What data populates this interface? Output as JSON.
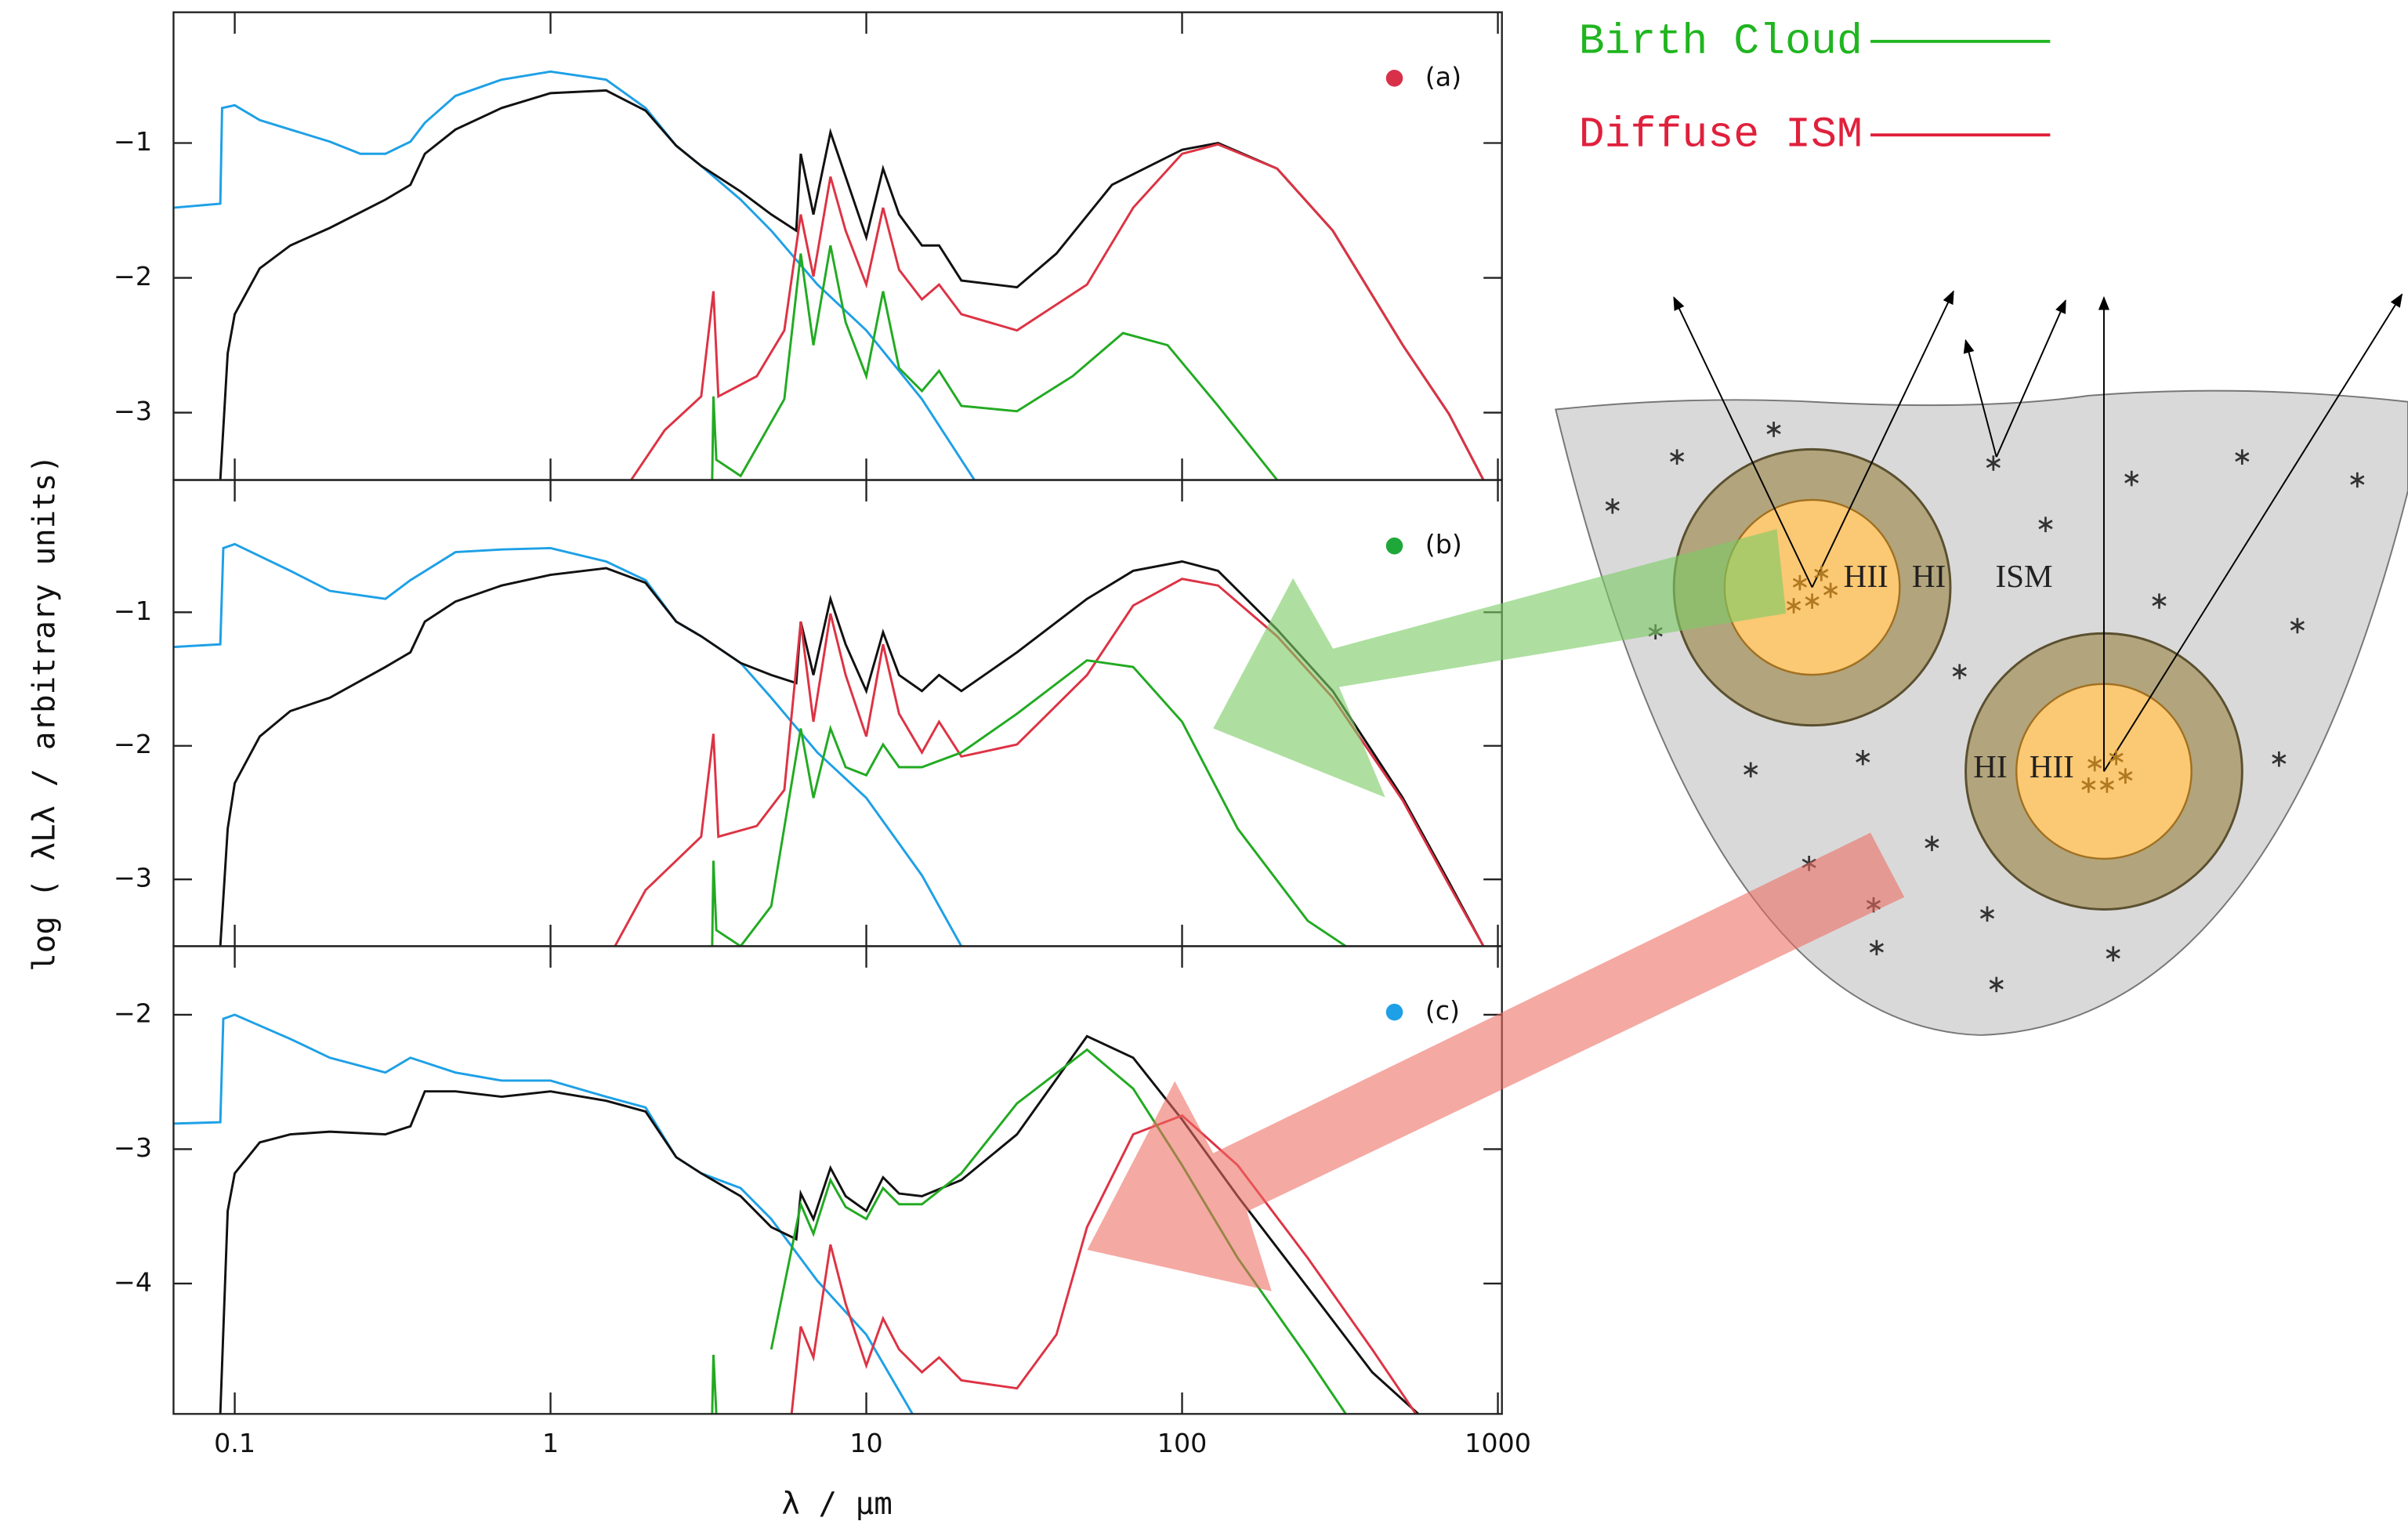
{
  "chart_data": [
    {
      "type": "line",
      "panel_label": "(a)",
      "marker_color": "#d9304a",
      "xlim": [
        0.064,
        1030
      ],
      "xticks": [
        0.1,
        1,
        10,
        100,
        1000
      ],
      "log_x": true,
      "show_xtick_labels": false,
      "ylim": [
        -3.5,
        -0.03
      ],
      "yticks": [
        {
          "value": -1,
          "label": "−1"
        },
        {
          "value": -2,
          "label": "−2"
        },
        {
          "value": -3,
          "label": "−3"
        }
      ],
      "series": [
        {
          "color": "#1ea0e6",
          "x": [
            0.064,
            0.09,
            0.0912,
            0.1,
            0.12,
            0.15,
            0.2,
            0.25,
            0.3,
            0.36,
            0.4,
            0.5,
            0.7,
            1,
            1.5,
            2,
            2.5,
            3,
            4,
            5,
            7,
            10,
            15,
            22
          ],
          "values": [
            -1.48,
            -1.45,
            -0.74,
            -0.72,
            -0.83,
            -0.9,
            -0.99,
            -1.08,
            -1.08,
            -0.99,
            -0.85,
            -0.65,
            -0.53,
            -0.47,
            -0.53,
            -0.74,
            -1.02,
            -1.17,
            -1.42,
            -1.65,
            -2.05,
            -2.39,
            -2.9,
            -3.5
          ]
        },
        {
          "color": "#111111",
          "x": [
            0.09,
            0.095,
            0.1,
            0.12,
            0.15,
            0.2,
            0.3,
            0.36,
            0.4,
            0.5,
            0.7,
            1,
            1.5,
            2,
            2.5,
            3,
            4,
            5,
            6,
            6.2,
            6.8,
            7.7,
            8.6,
            10,
            11.3,
            12.7,
            15,
            17,
            20,
            30,
            40,
            60,
            100,
            130,
            200,
            300,
            500,
            700,
            900
          ],
          "values": [
            -3.5,
            -2.56,
            -2.27,
            -1.93,
            -1.76,
            -1.63,
            -1.42,
            -1.31,
            -1.08,
            -0.9,
            -0.74,
            -0.63,
            -0.61,
            -0.76,
            -1.02,
            -1.17,
            -1.36,
            -1.53,
            -1.65,
            -1.08,
            -1.53,
            -0.92,
            -1.25,
            -1.7,
            -1.19,
            -1.53,
            -1.76,
            -1.76,
            -2.02,
            -2.07,
            -1.82,
            -1.31,
            -1.05,
            -1.0,
            -1.19,
            -1.65,
            -2.5,
            -3.01,
            -3.5
          ]
        },
        {
          "color": "#dd3344",
          "x": [
            1.8,
            2.3,
            3,
            3.28,
            3.4,
            4.5,
            5.5,
            6.2,
            6.8,
            7.7,
            8.6,
            10,
            11.3,
            12.7,
            15,
            17,
            20,
            30,
            50,
            70,
            100,
            130,
            200,
            300,
            500,
            700,
            900
          ],
          "values": [
            -3.5,
            -3.13,
            -2.88,
            -2.1,
            -2.88,
            -2.73,
            -2.39,
            -1.53,
            -1.99,
            -1.25,
            -1.65,
            -2.05,
            -1.48,
            -1.94,
            -2.16,
            -2.05,
            -2.27,
            -2.39,
            -2.05,
            -1.48,
            -1.08,
            -1.01,
            -1.19,
            -1.65,
            -2.5,
            -3.01,
            -3.5
          ]
        },
        {
          "color": "#22aa22",
          "x": [
            3.25,
            3.28,
            3.35,
            4,
            5.5,
            6.2,
            6.8,
            7.7,
            8.6,
            10,
            11.3,
            12.7,
            15,
            17,
            20,
            30,
            45,
            65,
            90,
            130,
            200
          ],
          "values": [
            -3.5,
            -2.88,
            -3.35,
            -3.47,
            -2.9,
            -1.82,
            -2.5,
            -1.76,
            -2.33,
            -2.73,
            -2.1,
            -2.67,
            -2.84,
            -2.69,
            -2.95,
            -2.99,
            -2.73,
            -2.41,
            -2.5,
            -2.95,
            -3.5
          ]
        }
      ]
    },
    {
      "type": "line",
      "panel_label": "(b)",
      "marker_color": "#1fa83a",
      "y_label": "log ( λLλ / arbitrary units)",
      "xlim": [
        0.064,
        1030
      ],
      "xticks": [
        0.1,
        1,
        10,
        100,
        1000
      ],
      "log_x": true,
      "show_xtick_labels": false,
      "ylim": [
        -3.5,
        -0.01
      ],
      "yticks": [
        {
          "value": -1,
          "label": "−1"
        },
        {
          "value": -2,
          "label": "−2"
        },
        {
          "value": -3,
          "label": "−3"
        }
      ],
      "series": [
        {
          "color": "#1ea0e6",
          "x": [
            0.064,
            0.09,
            0.092,
            0.1,
            0.15,
            0.2,
            0.3,
            0.36,
            0.5,
            0.7,
            1,
            1.5,
            2,
            2.5,
            3,
            4,
            5,
            7,
            10,
            15,
            20
          ],
          "values": [
            -1.26,
            -1.24,
            -0.52,
            -0.49,
            -0.69,
            -0.84,
            -0.9,
            -0.76,
            -0.55,
            -0.53,
            -0.52,
            -0.62,
            -0.76,
            -1.07,
            -1.18,
            -1.38,
            -1.64,
            -2.05,
            -2.39,
            -2.97,
            -3.5
          ]
        },
        {
          "color": "#111111",
          "x": [
            0.09,
            0.095,
            0.1,
            0.12,
            0.15,
            0.2,
            0.3,
            0.36,
            0.4,
            0.5,
            0.7,
            1,
            1.5,
            2,
            2.5,
            3,
            4,
            5,
            6,
            6.2,
            6.8,
            7.7,
            8.6,
            10,
            11.3,
            12.7,
            15,
            17,
            20,
            30,
            50,
            70,
            100,
            130,
            200,
            300,
            500,
            700,
            900
          ],
          "values": [
            -3.5,
            -2.62,
            -2.28,
            -1.93,
            -1.74,
            -1.64,
            -1.41,
            -1.3,
            -1.07,
            -0.92,
            -0.8,
            -0.72,
            -0.67,
            -0.78,
            -1.07,
            -1.18,
            -1.38,
            -1.47,
            -1.53,
            -1.07,
            -1.47,
            -0.9,
            -1.24,
            -1.59,
            -1.15,
            -1.47,
            -1.59,
            -1.47,
            -1.59,
            -1.3,
            -0.9,
            -0.69,
            -0.62,
            -0.69,
            -1.13,
            -1.59,
            -2.39,
            -3.02,
            -3.5
          ]
        },
        {
          "color": "#dd3344",
          "x": [
            1.6,
            2,
            3,
            3.28,
            3.4,
            4.5,
            5.5,
            6.2,
            6.8,
            7.7,
            8.6,
            10,
            11.3,
            12.7,
            15,
            17,
            20,
            30,
            50,
            70,
            100,
            130,
            200,
            300,
            500,
            700,
            900
          ],
          "values": [
            -3.5,
            -3.08,
            -2.68,
            -1.91,
            -2.68,
            -2.6,
            -2.33,
            -1.07,
            -1.82,
            -1.01,
            -1.47,
            -1.93,
            -1.24,
            -1.76,
            -2.05,
            -1.82,
            -2.08,
            -1.99,
            -1.47,
            -0.95,
            -0.75,
            -0.8,
            -1.18,
            -1.64,
            -2.41,
            -3.04,
            -3.5
          ]
        },
        {
          "color": "#22aa22",
          "x": [
            3.25,
            3.28,
            3.35,
            4,
            5,
            6.2,
            6.8,
            7.7,
            8.6,
            10,
            11.3,
            12.7,
            15,
            20,
            30,
            50,
            70,
            100,
            150,
            250,
            330
          ],
          "values": [
            -3.5,
            -2.86,
            -3.38,
            -3.5,
            -3.2,
            -1.87,
            -2.39,
            -1.87,
            -2.16,
            -2.22,
            -1.99,
            -2.16,
            -2.16,
            -2.05,
            -1.76,
            -1.36,
            -1.41,
            -1.82,
            -2.62,
            -3.31,
            -3.5
          ]
        }
      ]
    },
    {
      "type": "line",
      "panel_label": "(c)",
      "marker_color": "#1ea0e6",
      "x_label": "λ / μm",
      "xlim": [
        0.064,
        1030
      ],
      "xticks": [
        0.1,
        1,
        10,
        100,
        1000
      ],
      "log_x": true,
      "show_xtick_labels": true,
      "ylim": [
        -4.97,
        -1.49
      ],
      "yticks": [
        {
          "value": -2,
          "label": "−2"
        },
        {
          "value": -3,
          "label": "−3"
        },
        {
          "value": -4,
          "label": "−4"
        }
      ],
      "series": [
        {
          "color": "#1ea0e6",
          "x": [
            0.064,
            0.09,
            0.092,
            0.1,
            0.15,
            0.2,
            0.3,
            0.36,
            0.5,
            0.7,
            1,
            1.5,
            2,
            2.5,
            3,
            4,
            5,
            7,
            10,
            14
          ],
          "values": [
            -2.81,
            -2.8,
            -2.03,
            -2.0,
            -2.18,
            -2.32,
            -2.43,
            -2.32,
            -2.43,
            -2.49,
            -2.49,
            -2.61,
            -2.69,
            -3.06,
            -3.18,
            -3.29,
            -3.52,
            -3.98,
            -4.38,
            -4.97
          ]
        },
        {
          "color": "#111111",
          "x": [
            0.09,
            0.095,
            0.1,
            0.12,
            0.15,
            0.2,
            0.3,
            0.36,
            0.4,
            0.5,
            0.7,
            1,
            1.5,
            2,
            2.5,
            3,
            4,
            5,
            6,
            6.2,
            6.8,
            7.7,
            8.6,
            10,
            11.3,
            12.7,
            15,
            20,
            30,
            50,
            70,
            100,
            150,
            250,
            400,
            560
          ],
          "values": [
            -4.97,
            -3.46,
            -3.18,
            -2.95,
            -2.89,
            -2.87,
            -2.89,
            -2.83,
            -2.57,
            -2.57,
            -2.61,
            -2.57,
            -2.64,
            -2.72,
            -3.06,
            -3.18,
            -3.35,
            -3.58,
            -3.67,
            -3.33,
            -3.52,
            -3.14,
            -3.35,
            -3.46,
            -3.21,
            -3.33,
            -3.35,
            -3.23,
            -2.89,
            -2.16,
            -2.32,
            -2.78,
            -3.35,
            -4.03,
            -4.66,
            -4.97
          ]
        },
        {
          "color": "#dd3344",
          "x": [
            5.8,
            6.2,
            6.8,
            7.7,
            8.6,
            10,
            11.3,
            12.7,
            15,
            17,
            20,
            30,
            40,
            50,
            70,
            100,
            150,
            250,
            400,
            550
          ],
          "values": [
            -4.97,
            -4.32,
            -4.55,
            -3.71,
            -4.15,
            -4.61,
            -4.26,
            -4.49,
            -4.66,
            -4.55,
            -4.72,
            -4.78,
            -4.38,
            -3.58,
            -2.89,
            -2.75,
            -3.12,
            -3.81,
            -4.49,
            -4.97
          ]
        },
        {
          "color": "#22aa22",
          "x": [
            3.25,
            3.28,
            3.35,
            4.3,
            5,
            6.2,
            6.8,
            7.7,
            8.6,
            10,
            11.3,
            12.7,
            15,
            20,
            30,
            50,
            70,
            100,
            150,
            250,
            330
          ],
          "values": [
            -4.97,
            -4.53,
            -4.97,
            null,
            -4.49,
            -3.41,
            -3.63,
            -3.23,
            -3.43,
            -3.52,
            -3.29,
            -3.41,
            -3.41,
            -3.18,
            -2.66,
            -2.26,
            -2.55,
            -3.12,
            -3.81,
            -4.55,
            -4.97
          ]
        }
      ]
    }
  ],
  "legend": [
    {
      "name": "Birth Cloud",
      "color": "#1fb51f"
    },
    {
      "name": "Diffuse ISM",
      "color": "#e0203c"
    }
  ],
  "diagram": {
    "labels": [
      "HII",
      "HI",
      "ISM",
      "HI",
      "HII"
    ]
  }
}
